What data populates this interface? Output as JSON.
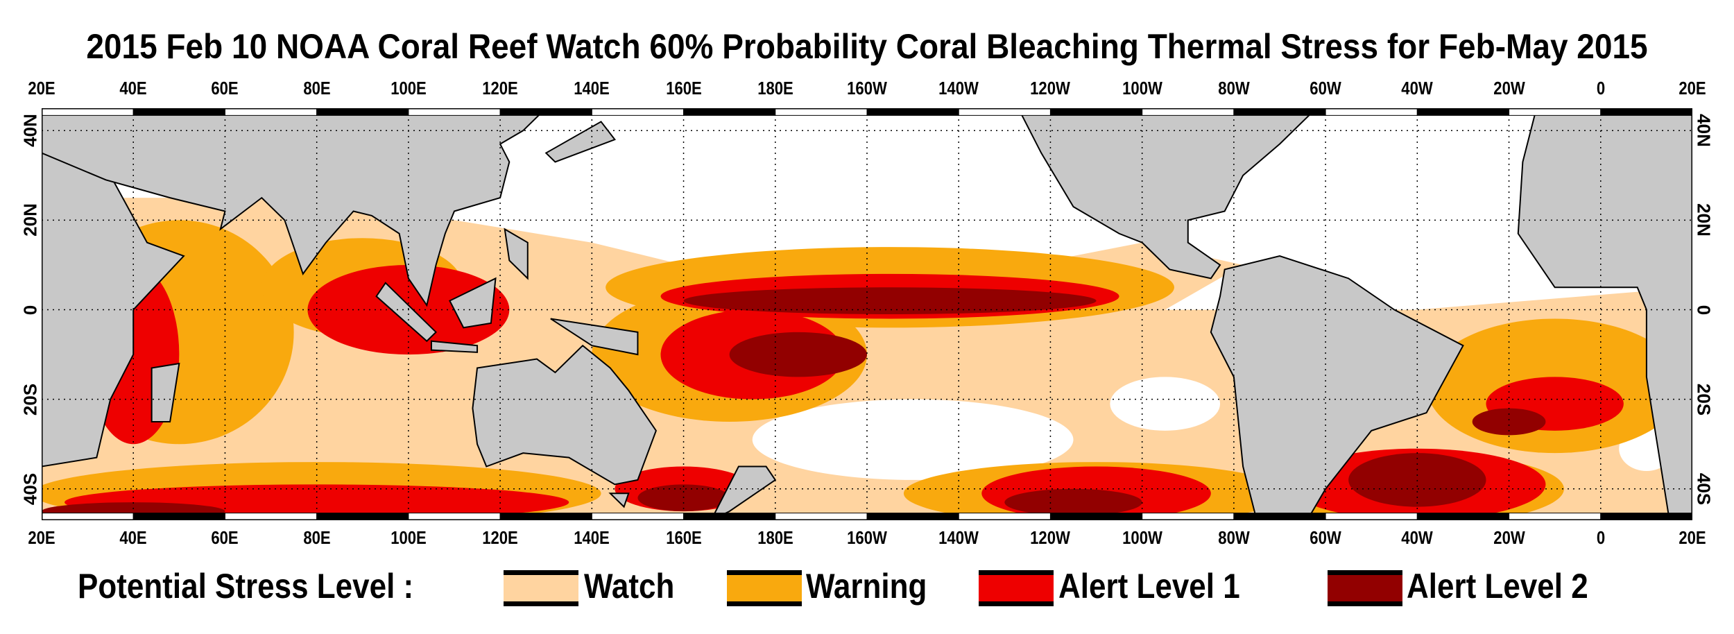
{
  "title": "2015 Feb 10 NOAA Coral Reef Watch 60% Probability Coral Bleaching Thermal Stress for Feb-May 2015",
  "map": {
    "lon_labels": [
      "20E",
      "40E",
      "60E",
      "80E",
      "100E",
      "120E",
      "140E",
      "160E",
      "180E",
      "160W",
      "140W",
      "120W",
      "100W",
      "80W",
      "60W",
      "40W",
      "20W",
      "0",
      "20E"
    ],
    "lat_labels": [
      "40N",
      "20N",
      "0",
      "20S",
      "40S"
    ],
    "colors": {
      "land": "#C8C8C8",
      "ocean": "#FFFFFF",
      "watch": "#FFD4A0",
      "warning": "#F9A90E",
      "alert1": "#EE0000",
      "alert2": "#920000"
    }
  },
  "legend": {
    "title": "Potential Stress Level :",
    "items": [
      {
        "label": "Watch",
        "color": "#FFD4A0"
      },
      {
        "label": "Warning",
        "color": "#F9A90E"
      },
      {
        "label": "Alert  Level  1",
        "color": "#EE0000"
      },
      {
        "label": "Alert  Level  2",
        "color": "#920000"
      }
    ]
  }
}
